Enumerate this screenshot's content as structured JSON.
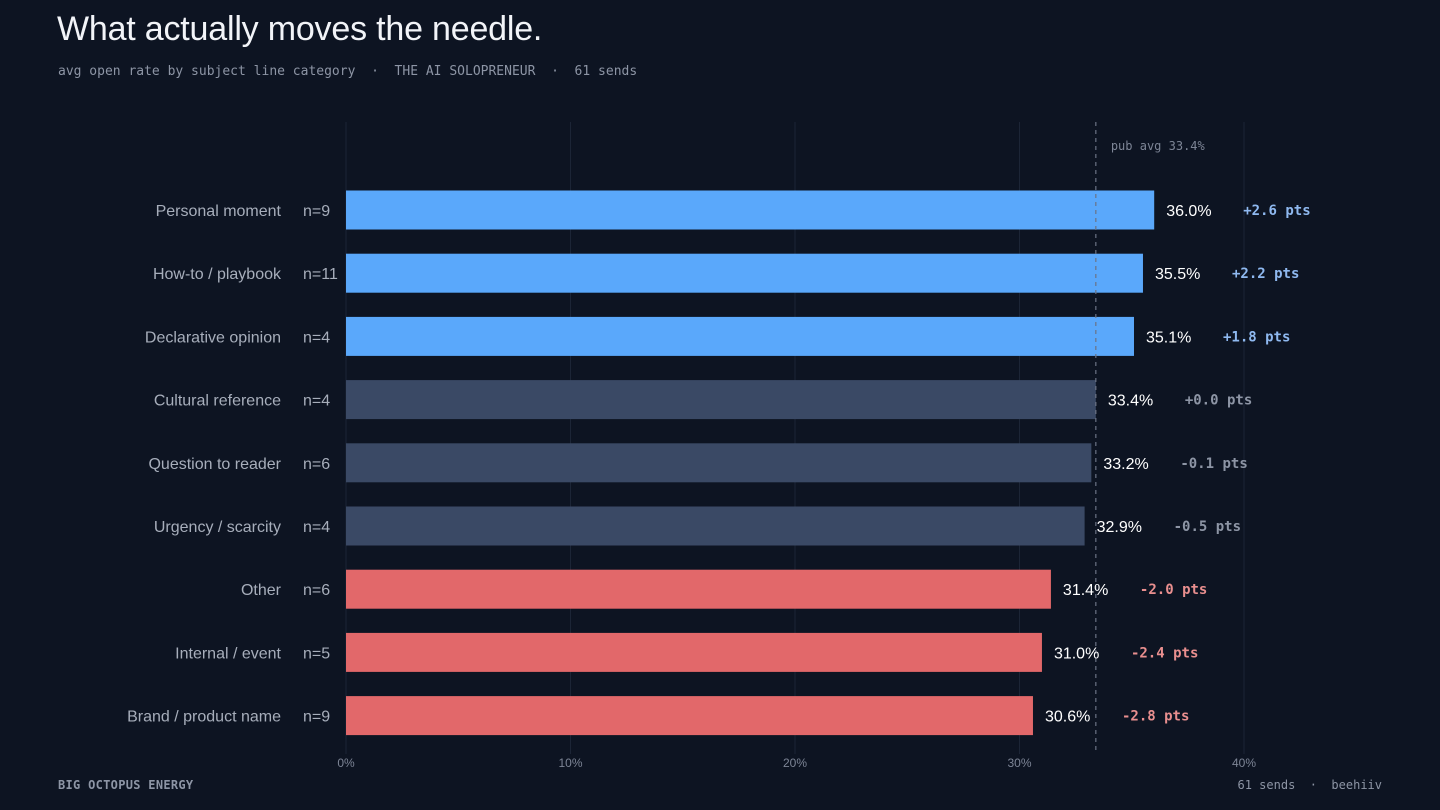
{
  "header": {
    "title": "What actually moves the needle.",
    "subtitle": "avg open rate by subject line category  ·  THE AI SOLOPRENEUR  ·  61 sends"
  },
  "footer": {
    "brand": "BIG OCTOPUS ENERGY",
    "meta": "61 sends  ·  beehiiv"
  },
  "colors": {
    "above": "#5aa8fb",
    "neutral": "#3a4965",
    "below": "#e2686a",
    "above_delta": "#8fb9f0",
    "neutral_delta": "#8d95a5",
    "below_delta": "#e98f8f"
  },
  "chart_data": {
    "type": "bar",
    "orientation": "horizontal",
    "categories": [
      "Personal moment",
      "How-to / playbook",
      "Declarative opinion",
      "Cultural reference",
      "Question to reader",
      "Urgency / scarcity",
      "Other",
      "Internal / event",
      "Brand / product name"
    ],
    "n_labels": [
      "n=9",
      "n=11",
      "n=4",
      "n=4",
      "n=6",
      "n=4",
      "n=6",
      "n=5",
      "n=9"
    ],
    "values": [
      36.0,
      35.5,
      35.1,
      33.4,
      33.2,
      32.9,
      31.4,
      31.0,
      30.6
    ],
    "value_labels": [
      "36.0%",
      "35.5%",
      "35.1%",
      "33.4%",
      "33.2%",
      "32.9%",
      "31.4%",
      "31.0%",
      "30.6%"
    ],
    "delta_labels": [
      "+2.6 pts",
      "+2.2 pts",
      "+1.8 pts",
      "+0.0 pts",
      "-0.1 pts",
      "-0.5 pts",
      "-2.0 pts",
      "-2.4 pts",
      "-2.8 pts"
    ],
    "groups": [
      "above",
      "above",
      "above",
      "neutral",
      "neutral",
      "neutral",
      "below",
      "below",
      "below"
    ],
    "xlim": [
      0,
      40
    ],
    "xticks": [
      0,
      10,
      20,
      30,
      40
    ],
    "xtick_labels": [
      "0%",
      "10%",
      "20%",
      "30%",
      "40%"
    ],
    "reference_line": {
      "value": 33.4,
      "label": "pub avg 33.4%"
    },
    "grid": true,
    "legend": "none"
  }
}
